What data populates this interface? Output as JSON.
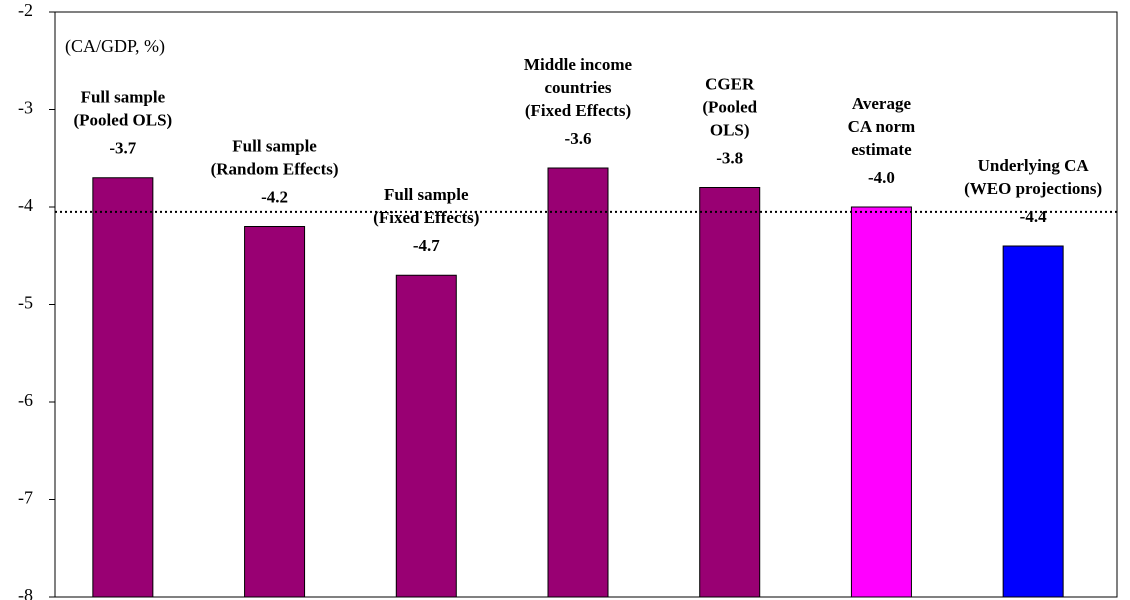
{
  "chart_data": {
    "type": "bar",
    "annotation": "(CA/GDP, %)",
    "categories": [
      [
        "Full sample",
        "(Pooled OLS)"
      ],
      [
        "Full sample",
        "(Random Effects)"
      ],
      [
        "Full sample",
        "(Fixed Effects)"
      ],
      [
        "Middle income",
        "countries",
        "(Fixed Effects)"
      ],
      [
        "CGER",
        "(Pooled",
        "OLS)"
      ],
      [
        "Average",
        "CA norm",
        "estimate"
      ],
      [
        "Underlying CA",
        "(WEO projections)"
      ]
    ],
    "values": [
      -3.7,
      -4.2,
      -4.7,
      -3.6,
      -3.8,
      -4.0,
      -4.4
    ],
    "value_labels": [
      "-3.7",
      "-4.2",
      "-4.7",
      "-3.6",
      "-3.8",
      "-4.0",
      "-4.4"
    ],
    "colors": [
      "#990073",
      "#990073",
      "#990073",
      "#990073",
      "#990073",
      "#ff00ff",
      "#0000ff"
    ],
    "reference_line": -4.05,
    "ylim": [
      -8,
      -2
    ],
    "yticks": [
      -8,
      -7,
      -6,
      -5,
      -4,
      -3,
      -2
    ],
    "grid": false
  }
}
